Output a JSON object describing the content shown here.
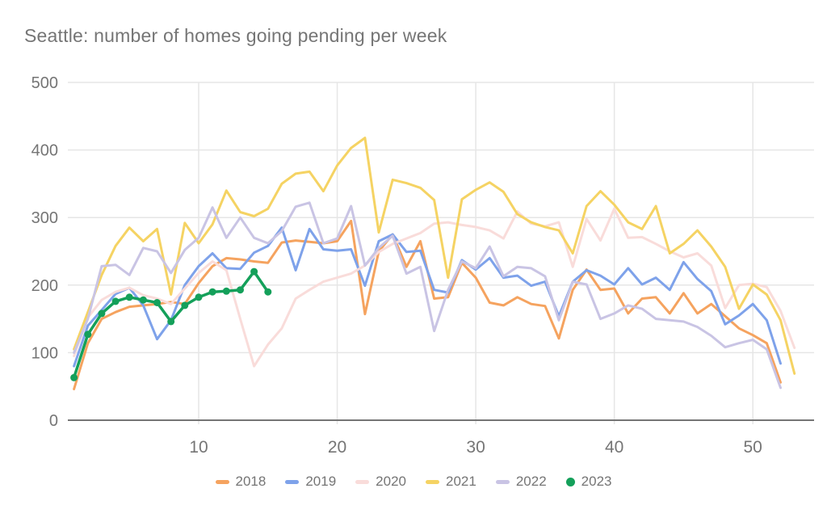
{
  "chart_data": {
    "type": "line",
    "title": "Seattle: number of homes going pending per week",
    "xlabel": "",
    "ylabel": "",
    "x_axis": {
      "range": [
        1,
        53
      ],
      "tick_labels": [
        "10",
        "20",
        "30",
        "40",
        "50"
      ],
      "tick_weeks": [
        10,
        20,
        30,
        40,
        50
      ]
    },
    "y_axis": {
      "range": [
        0,
        500
      ],
      "tick_labels": [
        "0",
        "100",
        "200",
        "300",
        "400",
        "500"
      ],
      "tick_values": [
        0,
        100,
        200,
        300,
        400,
        500
      ]
    },
    "grid": "on",
    "legend_position": "bottom",
    "text_color": "#757575",
    "grid_color": "#e6e6e6",
    "baseline_color": "#757575",
    "series": [
      {
        "name": "2018",
        "color": "#f5a35f",
        "marker": "none",
        "start_week": 1,
        "values": [
          46,
          114,
          150,
          160,
          168,
          170,
          172,
          175,
          172,
          203,
          228,
          240,
          238,
          235,
          233,
          263,
          266,
          264,
          262,
          265,
          295,
          157,
          250,
          275,
          227,
          265,
          180,
          182,
          233,
          211,
          174,
          170,
          182,
          172,
          169,
          121,
          193,
          223,
          193,
          195,
          158,
          180,
          182,
          158,
          188,
          158,
          172,
          154,
          136,
          126,
          114,
          56
        ]
      },
      {
        "name": "2019",
        "color": "#7ea2ea",
        "marker": "none",
        "start_week": 1,
        "values": [
          80,
          140,
          163,
          187,
          196,
          170,
          120,
          148,
          200,
          228,
          247,
          225,
          224,
          248,
          258,
          285,
          222,
          283,
          253,
          251,
          253,
          199,
          265,
          275,
          249,
          251,
          193,
          189,
          237,
          223,
          240,
          211,
          214,
          199,
          205,
          154,
          205,
          222,
          214,
          201,
          225,
          201,
          211,
          193,
          234,
          209,
          191,
          142,
          155,
          172,
          148,
          84
        ]
      },
      {
        "name": "2020",
        "color": "#f9dcda",
        "marker": "none",
        "start_week": 1,
        "values": [
          95,
          152,
          178,
          190,
          196,
          185,
          180,
          172,
          195,
          218,
          235,
          222,
          150,
          80,
          112,
          136,
          180,
          193,
          205,
          211,
          217,
          229,
          249,
          261,
          269,
          277,
          291,
          293,
          289,
          286,
          281,
          269,
          309,
          291,
          287,
          293,
          227,
          298,
          266,
          313,
          270,
          271,
          261,
          250,
          241,
          247,
          229,
          166,
          200,
          202,
          197,
          162,
          107
        ]
      },
      {
        "name": "2021",
        "color": "#f5d363",
        "marker": "none",
        "start_week": 1,
        "values": [
          105,
          160,
          215,
          258,
          285,
          265,
          283,
          186,
          292,
          262,
          290,
          340,
          308,
          302,
          313,
          350,
          365,
          368,
          339,
          377,
          403,
          418,
          278,
          356,
          351,
          344,
          326,
          211,
          327,
          341,
          352,
          338,
          305,
          293,
          286,
          281,
          247,
          317,
          339,
          319,
          293,
          283,
          317,
          247,
          261,
          281,
          257,
          227,
          165,
          201,
          186,
          148,
          69
        ]
      },
      {
        "name": "2022",
        "color": "#c9c4e4",
        "marker": "none",
        "start_week": 1,
        "values": [
          100,
          150,
          228,
          230,
          215,
          255,
          250,
          218,
          252,
          270,
          315,
          270,
          300,
          270,
          262,
          280,
          316,
          322,
          262,
          269,
          317,
          229,
          255,
          273,
          217,
          227,
          132,
          193,
          235,
          225,
          257,
          213,
          227,
          225,
          213,
          148,
          205,
          201,
          150,
          158,
          170,
          165,
          150,
          148,
          146,
          138,
          125,
          108,
          114,
          119,
          105,
          48
        ]
      },
      {
        "name": "2023",
        "color": "#14a05a",
        "marker": "circle",
        "start_week": 1,
        "values": [
          63,
          127,
          158,
          176,
          182,
          178,
          174,
          146,
          170,
          182,
          190,
          191,
          193,
          220,
          190
        ]
      }
    ]
  }
}
